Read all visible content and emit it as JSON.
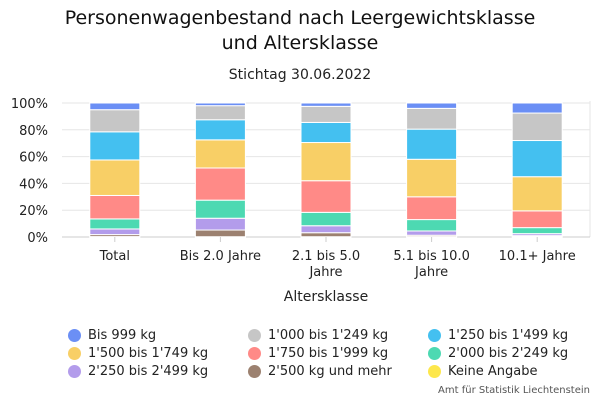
{
  "chart_data": {
    "type": "bar",
    "stacked": true,
    "title_lines": [
      "Personenwagenbestand nach Leergewichtsklasse",
      "und Altersklasse"
    ],
    "subtitle": "Stichtag 30.06.2022",
    "xlabel": "Altersklasse",
    "ylabel": "",
    "ylim": [
      0,
      100
    ],
    "yticks": [
      "0%",
      "20%",
      "40%",
      "60%",
      "80%",
      "100%"
    ],
    "categories": [
      [
        "Total"
      ],
      [
        "Bis 2.0 Jahre"
      ],
      [
        "2.1 bis 5.0",
        "Jahre"
      ],
      [
        "5.1 bis 10.0",
        "Jahre"
      ],
      [
        "10.1+ Jahre"
      ]
    ],
    "series": [
      {
        "name": "Keine Angabe",
        "color": "#fde74c",
        "values": [
          0.3,
          0.2,
          0.2,
          0.3,
          0.5
        ]
      },
      {
        "name": "2'500 kg und mehr",
        "color": "#9c8170",
        "values": [
          1.5,
          5.0,
          3.0,
          1.0,
          0.5
        ]
      },
      {
        "name": "2'250 bis 2'499 kg",
        "color": "#b39ceb",
        "values": [
          4.2,
          8.8,
          5.2,
          3.2,
          1.5
        ]
      },
      {
        "name": "2'000 bis 2'249 kg",
        "color": "#4dd9b2",
        "values": [
          7.5,
          13.5,
          10.0,
          8.5,
          4.5
        ]
      },
      {
        "name": "1'750 bis 1'999 kg",
        "color": "#ff8a87",
        "values": [
          17.5,
          24.0,
          23.6,
          17.0,
          12.5
        ]
      },
      {
        "name": "1'500 bis 1'749 kg",
        "color": "#f8cf66",
        "values": [
          26.5,
          21.0,
          28.5,
          28.0,
          25.5
        ]
      },
      {
        "name": "1'250 bis 1'499 kg",
        "color": "#44c0f0",
        "values": [
          21.0,
          15.0,
          15.0,
          22.5,
          27.0
        ]
      },
      {
        "name": "1'000 bis 1'249 kg",
        "color": "#c6c6c6",
        "values": [
          16.5,
          10.5,
          12.0,
          15.5,
          20.5
        ]
      },
      {
        "name": "Bis 999 kg",
        "color": "#6b8ff5",
        "values": [
          5.0,
          2.0,
          2.5,
          4.0,
          7.5
        ]
      }
    ],
    "legend_order": [
      "Bis 999 kg",
      "1'000 bis 1'249 kg",
      "1'250 bis 1'499 kg",
      "1'500 bis 1'749 kg",
      "1'750 bis 1'999 kg",
      "2'000 bis 2'249 kg",
      "2'250 bis 2'499 kg",
      "2'500 kg und mehr",
      "Keine Angabe"
    ],
    "legend_position": "bottom",
    "grid": true
  },
  "source": "Amt für Statistik Liechtenstein"
}
